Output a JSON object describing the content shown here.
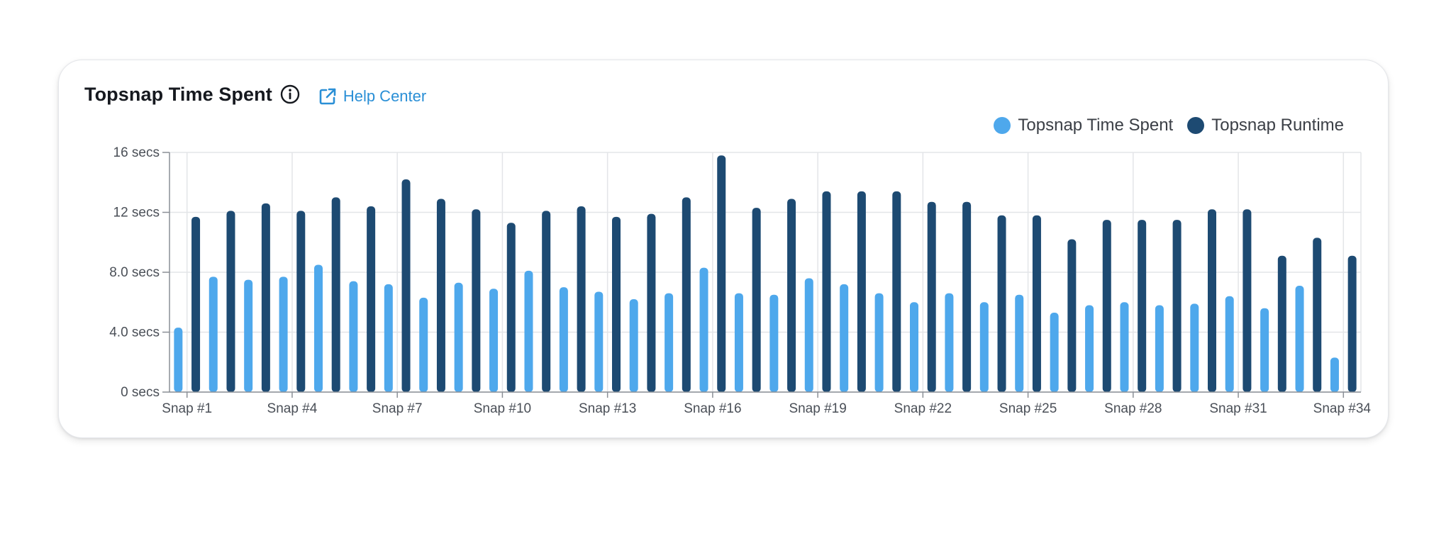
{
  "card": {
    "title": "Topsnap Time Spent",
    "help_label": "Help Center"
  },
  "icons": {
    "info": "info-circle-icon",
    "help": "external-link-icon"
  },
  "legend": [
    {
      "label": "Topsnap Time Spent",
      "color": "#4ea8ec"
    },
    {
      "label": "Topsnap Runtime",
      "color": "#1d4a72"
    }
  ],
  "chart_data": {
    "type": "bar",
    "ylim": [
      0,
      16
    ],
    "yticks": [
      {
        "value": 0,
        "label": "0 secs"
      },
      {
        "value": 4,
        "label": "4.0 secs"
      },
      {
        "value": 8,
        "label": "8.0 secs"
      },
      {
        "value": 12,
        "label": "12 secs"
      },
      {
        "value": 16,
        "label": "16 secs"
      }
    ],
    "categories": [
      "Snap #1",
      "Snap #2",
      "Snap #3",
      "Snap #4",
      "Snap #5",
      "Snap #6",
      "Snap #7",
      "Snap #8",
      "Snap #9",
      "Snap #10",
      "Snap #11",
      "Snap #12",
      "Snap #13",
      "Snap #14",
      "Snap #15",
      "Snap #16",
      "Snap #17",
      "Snap #18",
      "Snap #19",
      "Snap #20",
      "Snap #21",
      "Snap #22",
      "Snap #23",
      "Snap #24",
      "Snap #25",
      "Snap #26",
      "Snap #27",
      "Snap #28",
      "Snap #29",
      "Snap #30",
      "Snap #31",
      "Snap #32",
      "Snap #33",
      "Snap #34"
    ],
    "xtick_labels": [
      "Snap #1",
      "Snap #4",
      "Snap #7",
      "Snap #10",
      "Snap #13",
      "Snap #16",
      "Snap #19",
      "Snap #22",
      "Snap #25",
      "Snap #28",
      "Snap #31",
      "Snap #34"
    ],
    "grid": true,
    "legend_position": "top-right",
    "series": [
      {
        "name": "Topsnap Time Spent",
        "color": "#4ea8ec",
        "values": [
          4.3,
          7.7,
          7.5,
          7.7,
          8.5,
          7.4,
          7.2,
          6.3,
          7.3,
          6.9,
          8.1,
          7.0,
          6.7,
          6.2,
          6.6,
          8.3,
          6.6,
          6.5,
          7.6,
          7.2,
          6.6,
          6.0,
          6.6,
          6.0,
          6.5,
          5.3,
          5.8,
          6.0,
          5.8,
          5.9,
          6.4,
          5.6,
          7.1,
          2.3
        ]
      },
      {
        "name": "Topsnap Runtime",
        "color": "#1d4a72",
        "values": [
          11.7,
          12.1,
          12.6,
          12.1,
          13.0,
          12.4,
          14.2,
          12.9,
          12.2,
          11.3,
          12.1,
          12.4,
          11.7,
          11.9,
          13.0,
          15.8,
          12.3,
          12.9,
          13.4,
          13.4,
          13.4,
          12.7,
          12.7,
          11.8,
          11.8,
          10.2,
          11.5,
          11.5,
          11.5,
          12.2,
          12.2,
          9.1,
          10.3,
          9.1
        ]
      }
    ]
  }
}
